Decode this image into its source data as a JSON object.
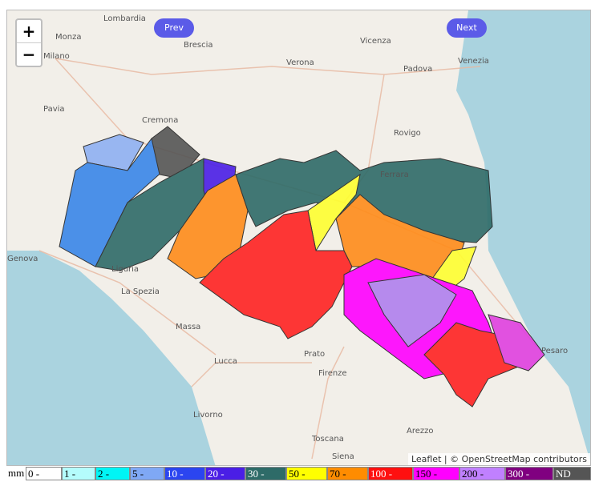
{
  "zoom": {
    "in": "+",
    "out": "−"
  },
  "nav": {
    "prev": "Prev",
    "next": "Next"
  },
  "attribution": "Leaflet | © OpenStreetMap contributors",
  "legend": {
    "unit": "mm",
    "items": [
      {
        "label": "0 -",
        "color": "#ffffff"
      },
      {
        "label": "1 -",
        "color": "#b4fcfc"
      },
      {
        "label": "2 -",
        "color": "#00f5f5"
      },
      {
        "label": "5 -",
        "color": "#7fa8f5"
      },
      {
        "label": "10 -",
        "color": "#2b45f0"
      },
      {
        "label": "20 -",
        "color": "#4a1ee6"
      },
      {
        "label": "30 -",
        "color": "#2e6b68"
      },
      {
        "label": "50 -",
        "color": "#ffff00"
      },
      {
        "label": "70 -",
        "color": "#ff8c00"
      },
      {
        "label": "100 -",
        "color": "#ff1010"
      },
      {
        "label": "150 -",
        "color": "#ff00ff"
      },
      {
        "label": "200 -",
        "color": "#c080ff"
      },
      {
        "label": "300 -",
        "color": "#800080"
      },
      {
        "label": "ND",
        "color": "#555555"
      }
    ]
  },
  "places": [
    "Lombardia",
    "Monza",
    "Milano",
    "Brescia",
    "Verona",
    "Vicenza",
    "Padova",
    "Venezia",
    "Pavia",
    "Cremona",
    "Rovigo",
    "Ferrara",
    "Genova",
    "Liguria",
    "La Spezia",
    "Massa",
    "Prato",
    "Lucca",
    "Firenze",
    "Livorno",
    "Siena",
    "Arezzo",
    "Pesaro",
    "Toscana"
  ]
}
